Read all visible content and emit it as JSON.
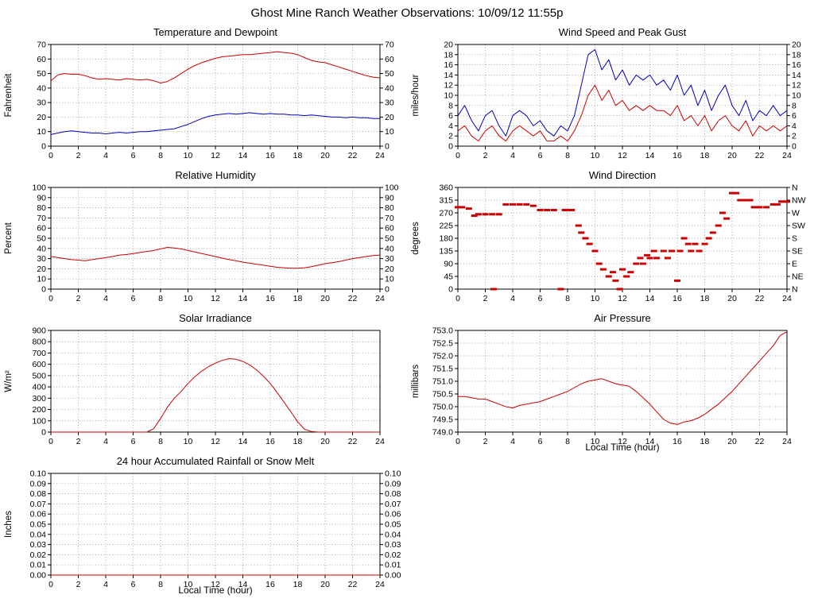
{
  "page_title": "Ghost Mine Ranch Weather Observations: 10/09/12 11:55p",
  "colors": {
    "red": "#cc0000",
    "blue": "#0000bb",
    "grid": "#888888",
    "axis": "#000000"
  },
  "chart_data": [
    {
      "type": "line",
      "title": "Temperature and Dewpoint",
      "ylabel": "Fahrenheit",
      "xlabel": "",
      "ylim": [
        0,
        70
      ],
      "xlim": [
        0,
        24
      ],
      "right_ticks": true,
      "yticks": [
        0,
        10,
        20,
        30,
        40,
        50,
        60,
        70
      ],
      "ytick_labels": [
        "0",
        "10",
        "20",
        "30",
        "40",
        "50",
        "60",
        "70"
      ],
      "xticks": [
        0,
        2,
        4,
        6,
        8,
        10,
        12,
        14,
        16,
        18,
        20,
        22,
        24
      ],
      "xtick_labels": [
        "0",
        "2",
        "4",
        "6",
        "8",
        "10",
        "12",
        "14",
        "16",
        "18",
        "20",
        "22",
        "24"
      ],
      "series": [
        {
          "name": "Temperature",
          "color": "#cc0000",
          "x_start": 0,
          "x_step": 0.5,
          "y": [
            45,
            49,
            50,
            49.5,
            49.5,
            48.5,
            47,
            46,
            46.5,
            46,
            45.5,
            46.5,
            46,
            45.5,
            46,
            45,
            43.5,
            44.5,
            47,
            50,
            53,
            55.5,
            57.5,
            59,
            60.5,
            61.5,
            62,
            62.5,
            63,
            63,
            63.5,
            64,
            64.5,
            65,
            64.5,
            64,
            63,
            61,
            59,
            58,
            57.5,
            56,
            54.5,
            53,
            51.5,
            50,
            48.5,
            47.5,
            47
          ]
        },
        {
          "name": "Dewpoint",
          "color": "#0000bb",
          "x_start": 0,
          "x_step": 0.5,
          "y": [
            8,
            9,
            10,
            10.5,
            10,
            9.5,
            9,
            9,
            8.5,
            9,
            9.5,
            9,
            9.5,
            10,
            10,
            10.5,
            11,
            11.5,
            12,
            13.5,
            15,
            17,
            19,
            20.5,
            21.5,
            22,
            22.5,
            22,
            22.5,
            23,
            22.5,
            22,
            22.5,
            22,
            22,
            21.5,
            21.5,
            21,
            21.5,
            21,
            20.5,
            20,
            20,
            19.5,
            20,
            19.5,
            19.5,
            19,
            19
          ]
        }
      ]
    },
    {
      "type": "line",
      "title": "Wind Speed and Peak Gust",
      "ylabel": "miles/hour",
      "xlabel": "",
      "ylim": [
        0,
        20
      ],
      "xlim": [
        0,
        24
      ],
      "right_ticks": true,
      "yticks": [
        0,
        2,
        4,
        6,
        8,
        10,
        12,
        14,
        16,
        18,
        20
      ],
      "ytick_labels": [
        "0",
        "2",
        "4",
        "6",
        "8",
        "10",
        "12",
        "14",
        "16",
        "18",
        "20"
      ],
      "xticks": [
        0,
        2,
        4,
        6,
        8,
        10,
        12,
        14,
        16,
        18,
        20,
        22,
        24
      ],
      "xtick_labels": [
        "0",
        "2",
        "4",
        "6",
        "8",
        "10",
        "12",
        "14",
        "16",
        "18",
        "20",
        "22",
        "24"
      ],
      "series": [
        {
          "name": "Peak Gust",
          "color": "#0000bb",
          "x_start": 0,
          "x_step": 0.5,
          "y": [
            6,
            8,
            5,
            3,
            6,
            7,
            4,
            2,
            6,
            7,
            6,
            4,
            5,
            3,
            2,
            4,
            3,
            6,
            12,
            18,
            19,
            15,
            17,
            13,
            15,
            12,
            14,
            13,
            14,
            12,
            13,
            11,
            14,
            10,
            12,
            8,
            11,
            7,
            10,
            12,
            8,
            6,
            9,
            5,
            7,
            6,
            8,
            6,
            7
          ]
        },
        {
          "name": "Wind Speed",
          "color": "#cc0000",
          "x_start": 0,
          "x_step": 0.5,
          "y": [
            3,
            4,
            2,
            1,
            3,
            4,
            2,
            1,
            3,
            4,
            3,
            2,
            3,
            1,
            1,
            2,
            1,
            3,
            6,
            10,
            12,
            9,
            11,
            8,
            9,
            7,
            8,
            7,
            8,
            7,
            7,
            6,
            8,
            5,
            6,
            4,
            6,
            3,
            5,
            6,
            4,
            3,
            5,
            2,
            4,
            3,
            4,
            3,
            4
          ]
        }
      ]
    },
    {
      "type": "line",
      "title": "Relative Humidity",
      "ylabel": "Percent",
      "xlabel": "",
      "ylim": [
        0,
        100
      ],
      "xlim": [
        0,
        24
      ],
      "right_ticks": true,
      "yticks": [
        0,
        10,
        20,
        30,
        40,
        50,
        60,
        70,
        80,
        90,
        100
      ],
      "ytick_labels": [
        "0",
        "10",
        "20",
        "30",
        "40",
        "50",
        "60",
        "70",
        "80",
        "90",
        "100"
      ],
      "xticks": [
        0,
        2,
        4,
        6,
        8,
        10,
        12,
        14,
        16,
        18,
        20,
        22,
        24
      ],
      "xtick_labels": [
        "0",
        "2",
        "4",
        "6",
        "8",
        "10",
        "12",
        "14",
        "16",
        "18",
        "20",
        "22",
        "24"
      ],
      "series": [
        {
          "name": "Relative Humidity",
          "color": "#cc0000",
          "x_start": 0,
          "x_step": 0.5,
          "y": [
            32,
            31,
            30,
            29,
            28.5,
            28,
            29,
            30,
            31,
            32,
            33.5,
            34,
            35,
            36,
            37,
            38,
            39.5,
            41,
            40.5,
            39.5,
            38,
            36.5,
            35,
            33.5,
            32,
            30.5,
            29,
            28,
            26.5,
            25.5,
            24.5,
            23.5,
            22.5,
            21.5,
            21,
            20.5,
            20.5,
            21,
            22,
            23.5,
            25,
            26,
            27,
            28.5,
            30,
            31,
            32,
            33,
            33.5
          ]
        }
      ]
    },
    {
      "type": "scatter",
      "title": "Wind Direction",
      "ylabel": "degrees",
      "xlabel": "",
      "ylim": [
        0,
        360
      ],
      "xlim": [
        0,
        24
      ],
      "right_ticks": true,
      "yticks": [
        0,
        45,
        90,
        135,
        180,
        225,
        270,
        315,
        360
      ],
      "ytick_labels": [
        "0",
        "45",
        "90",
        "135",
        "180",
        "225",
        "270",
        "315",
        "360"
      ],
      "ytick_labels_right": [
        "N",
        "NE",
        "E",
        "SE",
        "S",
        "SW",
        "W",
        "NW",
        "N"
      ],
      "xticks": [
        0,
        2,
        4,
        6,
        8,
        10,
        12,
        14,
        16,
        18,
        20,
        22,
        24
      ],
      "xtick_labels": [
        "0",
        "2",
        "4",
        "6",
        "8",
        "10",
        "12",
        "14",
        "16",
        "18",
        "20",
        "22",
        "24"
      ],
      "series": [
        {
          "name": "Wind Direction",
          "color": "#cc0000",
          "points": [
            [
              0,
              290
            ],
            [
              0.3,
              290
            ],
            [
              0.8,
              285
            ],
            [
              1.2,
              260
            ],
            [
              1.5,
              265
            ],
            [
              2,
              265
            ],
            [
              2.5,
              265
            ],
            [
              2.6,
              0
            ],
            [
              3,
              265
            ],
            [
              3.5,
              300
            ],
            [
              4,
              300
            ],
            [
              4.5,
              300
            ],
            [
              5,
              300
            ],
            [
              5.5,
              295
            ],
            [
              6,
              280
            ],
            [
              6.5,
              280
            ],
            [
              7,
              280
            ],
            [
              7.5,
              0
            ],
            [
              7.8,
              280
            ],
            [
              8,
              280
            ],
            [
              8.3,
              280
            ],
            [
              8.8,
              225
            ],
            [
              9,
              200
            ],
            [
              9.3,
              180
            ],
            [
              9.6,
              160
            ],
            [
              10,
              135
            ],
            [
              10.3,
              90
            ],
            [
              10.6,
              70
            ],
            [
              11,
              45
            ],
            [
              11.3,
              60
            ],
            [
              11.5,
              30
            ],
            [
              11.8,
              0
            ],
            [
              12,
              70
            ],
            [
              12.3,
              45
            ],
            [
              12.6,
              60
            ],
            [
              13,
              90
            ],
            [
              13.3,
              110
            ],
            [
              13.5,
              90
            ],
            [
              13.8,
              120
            ],
            [
              14,
              110
            ],
            [
              14.3,
              135
            ],
            [
              14.5,
              110
            ],
            [
              15,
              135
            ],
            [
              15.3,
              110
            ],
            [
              15.6,
              135
            ],
            [
              16,
              30
            ],
            [
              16.2,
              135
            ],
            [
              16.5,
              180
            ],
            [
              16.8,
              160
            ],
            [
              17,
              135
            ],
            [
              17.3,
              160
            ],
            [
              17.6,
              135
            ],
            [
              18,
              160
            ],
            [
              18.3,
              180
            ],
            [
              18.6,
              200
            ],
            [
              19,
              225
            ],
            [
              19.3,
              270
            ],
            [
              19.6,
              250
            ],
            [
              20,
              340
            ],
            [
              20.3,
              340
            ],
            [
              20.6,
              315
            ],
            [
              21,
              315
            ],
            [
              21.3,
              315
            ],
            [
              21.6,
              290
            ],
            [
              22,
              290
            ],
            [
              22.5,
              290
            ],
            [
              23,
              300
            ],
            [
              23.3,
              300
            ],
            [
              23.6,
              310
            ],
            [
              24,
              310
            ]
          ]
        }
      ]
    },
    {
      "type": "line",
      "title": "Solar Irradiance",
      "ylabel": "W/m²",
      "xlabel": "",
      "ylim": [
        0,
        900
      ],
      "xlim": [
        0,
        24
      ],
      "right_ticks": false,
      "yticks": [
        0,
        100,
        200,
        300,
        400,
        500,
        600,
        700,
        800,
        900
      ],
      "ytick_labels": [
        "0",
        "100",
        "200",
        "300",
        "400",
        "500",
        "600",
        "700",
        "800",
        "900"
      ],
      "xticks": [
        0,
        2,
        4,
        6,
        8,
        10,
        12,
        14,
        16,
        18,
        20,
        22,
        24
      ],
      "xtick_labels": [
        "0",
        "2",
        "4",
        "6",
        "8",
        "10",
        "12",
        "14",
        "16",
        "18",
        "20",
        "22",
        "24"
      ],
      "series": [
        {
          "name": "Solar Irradiance",
          "color": "#cc0000",
          "x_start": 0,
          "x_step": 0.5,
          "y": [
            0,
            0,
            0,
            0,
            0,
            0,
            0,
            0,
            0,
            0,
            0,
            0,
            0,
            0,
            0,
            30,
            120,
            220,
            300,
            360,
            430,
            490,
            540,
            580,
            610,
            635,
            650,
            645,
            625,
            595,
            550,
            495,
            430,
            350,
            265,
            180,
            90,
            25,
            5,
            0,
            0,
            0,
            0,
            0,
            0,
            0,
            0,
            0,
            0
          ]
        }
      ]
    },
    {
      "type": "line",
      "title": "Air Pressure",
      "ylabel": "millibars",
      "xlabel": "Local Time (hour)",
      "ylim": [
        749.0,
        753.0
      ],
      "xlim": [
        0,
        24
      ],
      "right_ticks": false,
      "yticks": [
        749.0,
        749.5,
        750.0,
        750.5,
        751.0,
        751.5,
        752.0,
        752.5,
        753.0
      ],
      "ytick_labels": [
        "749.0",
        "749.5",
        "750.0",
        "750.5",
        "751.0",
        "751.5",
        "752.0",
        "752.5",
        "753.0"
      ],
      "xticks": [
        0,
        2,
        4,
        6,
        8,
        10,
        12,
        14,
        16,
        18,
        20,
        22,
        24
      ],
      "xtick_labels": [
        "0",
        "2",
        "4",
        "6",
        "8",
        "10",
        "12",
        "14",
        "16",
        "18",
        "20",
        "22",
        "24"
      ],
      "series": [
        {
          "name": "Air Pressure",
          "color": "#cc0000",
          "x_start": 0,
          "x_step": 0.5,
          "y": [
            750.4,
            750.4,
            750.35,
            750.3,
            750.3,
            750.2,
            750.1,
            750.0,
            749.95,
            750.05,
            750.1,
            750.15,
            750.2,
            750.3,
            750.4,
            750.5,
            750.6,
            750.75,
            750.9,
            751.0,
            751.05,
            751.1,
            751.0,
            750.9,
            750.85,
            750.8,
            750.6,
            750.35,
            750.1,
            749.8,
            749.5,
            749.35,
            749.3,
            749.4,
            749.45,
            749.55,
            749.7,
            749.9,
            750.1,
            750.35,
            750.6,
            750.9,
            751.2,
            751.5,
            751.8,
            752.1,
            752.4,
            752.8,
            752.95
          ]
        }
      ]
    },
    {
      "type": "line",
      "title": "24 hour Accumulated Rainfall or Snow Melt",
      "ylabel": "Inches",
      "xlabel": "Local Time (hour)",
      "ylim": [
        0,
        0.1
      ],
      "xlim": [
        0,
        24
      ],
      "right_ticks": true,
      "yticks": [
        0,
        0.01,
        0.02,
        0.03,
        0.04,
        0.05,
        0.06,
        0.07,
        0.08,
        0.09,
        0.1
      ],
      "ytick_labels": [
        "0.00",
        "0.01",
        "0.02",
        "0.03",
        "0.04",
        "0.05",
        "0.06",
        "0.07",
        "0.08",
        "0.09",
        "0.10"
      ],
      "xticks": [
        0,
        2,
        4,
        6,
        8,
        10,
        12,
        14,
        16,
        18,
        20,
        22,
        24
      ],
      "xtick_labels": [
        "0",
        "2",
        "4",
        "6",
        "8",
        "10",
        "12",
        "14",
        "16",
        "18",
        "20",
        "22",
        "24"
      ],
      "series": [
        {
          "name": "Rainfall",
          "color": "#cc0000",
          "x": [
            0,
            24
          ],
          "y": [
            0,
            0
          ]
        }
      ]
    }
  ]
}
